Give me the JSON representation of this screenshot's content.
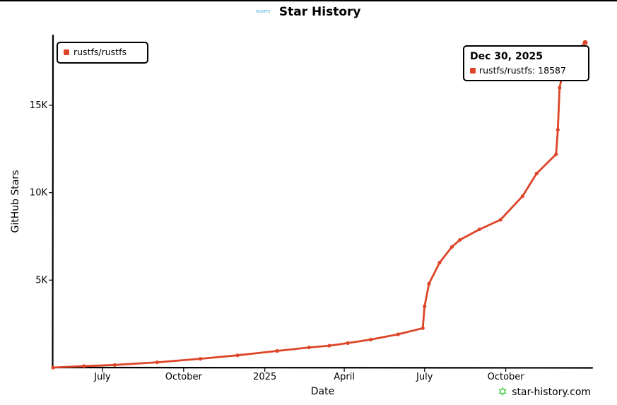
{
  "header": {
    "logo_text": "RUSTFS",
    "title": "Star History"
  },
  "brand": {
    "text": "star-history.com",
    "icon": "star-icon",
    "icon_color": "#3ec83e"
  },
  "chart_data": {
    "type": "line",
    "title": "Star History",
    "xlabel": "Date",
    "ylabel": "GitHub Stars",
    "x_type": "date",
    "xlim": [
      "2024-05-06",
      "2026-01-07"
    ],
    "ylim": [
      0,
      19000
    ],
    "x_ticks": [
      {
        "label": "July",
        "date": "2024-07-01"
      },
      {
        "label": "October",
        "date": "2024-10-01"
      },
      {
        "label": "2025",
        "date": "2025-01-01"
      },
      {
        "label": "April",
        "date": "2025-04-01"
      },
      {
        "label": "July",
        "date": "2025-07-01"
      },
      {
        "label": "October",
        "date": "2025-10-01"
      }
    ],
    "y_ticks": [
      {
        "label": "5K",
        "value": 5000
      },
      {
        "label": "10K",
        "value": 10000
      },
      {
        "label": "15K",
        "value": 15000
      }
    ],
    "grid": false,
    "legend": {
      "position": "top-left",
      "entries": [
        "rustfs/rustfs"
      ]
    },
    "series": [
      {
        "name": "rustfs/rustfs",
        "color": "#dd4528",
        "points": [
          {
            "date": "2024-05-06",
            "value": 0
          },
          {
            "date": "2024-06-10",
            "value": 80
          },
          {
            "date": "2024-07-15",
            "value": 150
          },
          {
            "date": "2024-09-01",
            "value": 300
          },
          {
            "date": "2024-10-20",
            "value": 500
          },
          {
            "date": "2024-12-01",
            "value": 700
          },
          {
            "date": "2025-01-15",
            "value": 950
          },
          {
            "date": "2025-02-20",
            "value": 1150
          },
          {
            "date": "2025-03-15",
            "value": 1250
          },
          {
            "date": "2025-04-05",
            "value": 1400
          },
          {
            "date": "2025-05-01",
            "value": 1600
          },
          {
            "date": "2025-06-01",
            "value": 1900
          },
          {
            "date": "2025-06-29",
            "value": 2250
          },
          {
            "date": "2025-07-01",
            "value": 3500
          },
          {
            "date": "2025-07-06",
            "value": 4800
          },
          {
            "date": "2025-07-18",
            "value": 6000
          },
          {
            "date": "2025-08-01",
            "value": 6900
          },
          {
            "date": "2025-08-10",
            "value": 7300
          },
          {
            "date": "2025-09-01",
            "value": 7900
          },
          {
            "date": "2025-09-25",
            "value": 8450
          },
          {
            "date": "2025-10-20",
            "value": 9800
          },
          {
            "date": "2025-11-05",
            "value": 11100
          },
          {
            "date": "2025-11-27",
            "value": 12200
          },
          {
            "date": "2025-11-29",
            "value": 13600
          },
          {
            "date": "2025-12-01",
            "value": 16000
          },
          {
            "date": "2025-12-06",
            "value": 17200
          },
          {
            "date": "2025-12-22",
            "value": 18200
          },
          {
            "date": "2025-12-30",
            "value": 18587
          }
        ]
      }
    ],
    "tooltip": {
      "title": "Dec 30, 2025",
      "series": "rustfs/rustfs",
      "value": "18587",
      "text": "rustfs/rustfs: 18587"
    }
  }
}
